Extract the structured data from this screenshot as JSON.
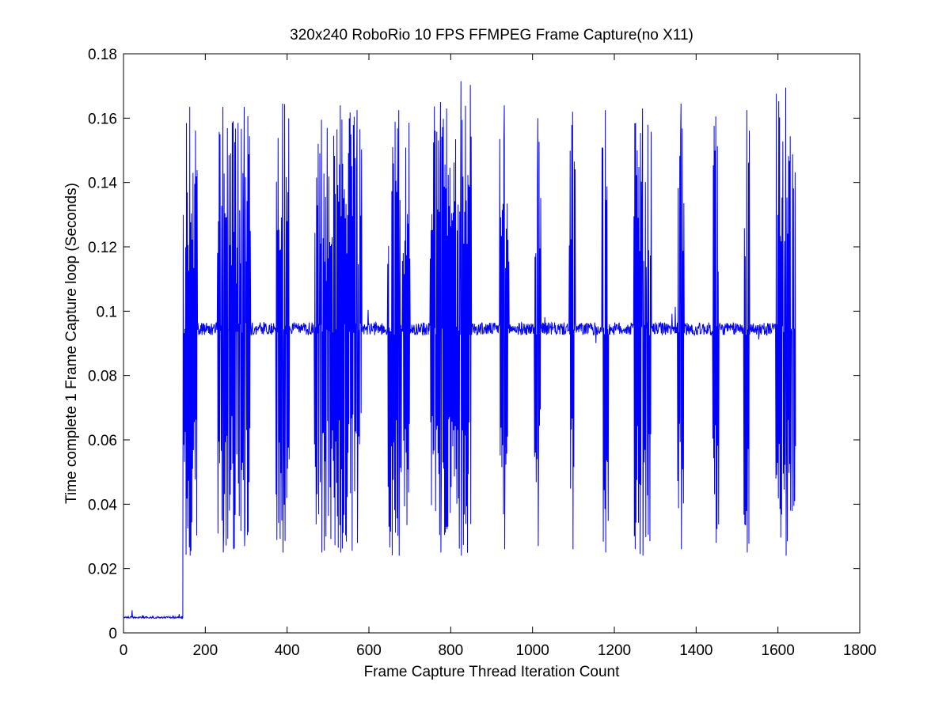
{
  "chart_data": {
    "type": "line",
    "title": "320x240 RoboRio 10 FPS FFMPEG Frame Capture(no X11)",
    "xlabel": "Frame Capture Thread Iteration Count",
    "ylabel": "Time complete 1 Frame Capture loop (Seconds)",
    "xlim": [
      0,
      1800
    ],
    "ylim": [
      0,
      0.18
    ],
    "xticks": [
      0,
      200,
      400,
      600,
      800,
      1000,
      1200,
      1400,
      1600,
      1800
    ],
    "yticks": [
      0,
      0.02,
      0.04,
      0.06,
      0.08,
      0.1,
      0.12,
      0.14,
      0.16,
      0.18
    ],
    "xtick_labels": [
      "0",
      "200",
      "400",
      "600",
      "800",
      "1000",
      "1200",
      "1400",
      "1600",
      "1800"
    ],
    "ytick_labels": [
      "0",
      "0.02",
      "0.04",
      "0.06",
      "0.08",
      "0.1",
      "0.12",
      "0.14",
      "0.16",
      "0.18"
    ],
    "grid": false,
    "line_color": "#0000ff",
    "series": [
      {
        "x_start": 1,
        "x_end": 1643,
        "startup_phase": {
          "x_range": [
            1,
            145
          ],
          "baseline": 0.0048,
          "spike_max": 0.0085
        },
        "steady_baseline": 0.0945,
        "steady_noise": 0.002,
        "bursts": [
          {
            "x_range": [
              143,
              180
            ],
            "max": 0.1635,
            "min": 0.024
          },
          {
            "x_range": [
              230,
              255
            ],
            "max": 0.1635,
            "min": 0.025
          },
          {
            "x_range": [
              258,
              278
            ],
            "max": 0.159,
            "min": 0.026
          },
          {
            "x_range": [
              280,
              310
            ],
            "max": 0.1635,
            "min": 0.027
          },
          {
            "x_range": [
              372,
              405
            ],
            "max": 0.1645,
            "min": 0.025
          },
          {
            "x_range": [
              467,
              500
            ],
            "max": 0.1595,
            "min": 0.025
          },
          {
            "x_range": [
              500,
              560
            ],
            "max": 0.164,
            "min": 0.025
          },
          {
            "x_range": [
              560,
              582
            ],
            "max": 0.1625,
            "min": 0.028
          },
          {
            "x_range": [
              645,
              700
            ],
            "max": 0.1625,
            "min": 0.024
          },
          {
            "x_range": [
              750,
              800
            ],
            "max": 0.165,
            "min": 0.025
          },
          {
            "x_range": [
              800,
              850
            ],
            "max": 0.1715,
            "min": 0.024
          },
          {
            "x_range": [
              920,
              942
            ],
            "max": 0.164,
            "min": 0.026
          },
          {
            "x_range": [
              1005,
              1020
            ],
            "max": 0.16,
            "min": 0.027
          },
          {
            "x_range": [
              1090,
              1105
            ],
            "max": 0.162,
            "min": 0.026
          },
          {
            "x_range": [
              1170,
              1185
            ],
            "max": 0.1625,
            "min": 0.025
          },
          {
            "x_range": [
              1248,
              1290
            ],
            "max": 0.163,
            "min": 0.024
          },
          {
            "x_range": [
              1355,
              1370
            ],
            "max": 0.1645,
            "min": 0.026
          },
          {
            "x_range": [
              1440,
              1455
            ],
            "max": 0.1605,
            "min": 0.028
          },
          {
            "x_range": [
              1517,
              1530
            ],
            "max": 0.1625,
            "min": 0.025
          },
          {
            "x_range": [
              1595,
              1643
            ],
            "max": 0.1695,
            "min": 0.024
          }
        ]
      }
    ]
  }
}
